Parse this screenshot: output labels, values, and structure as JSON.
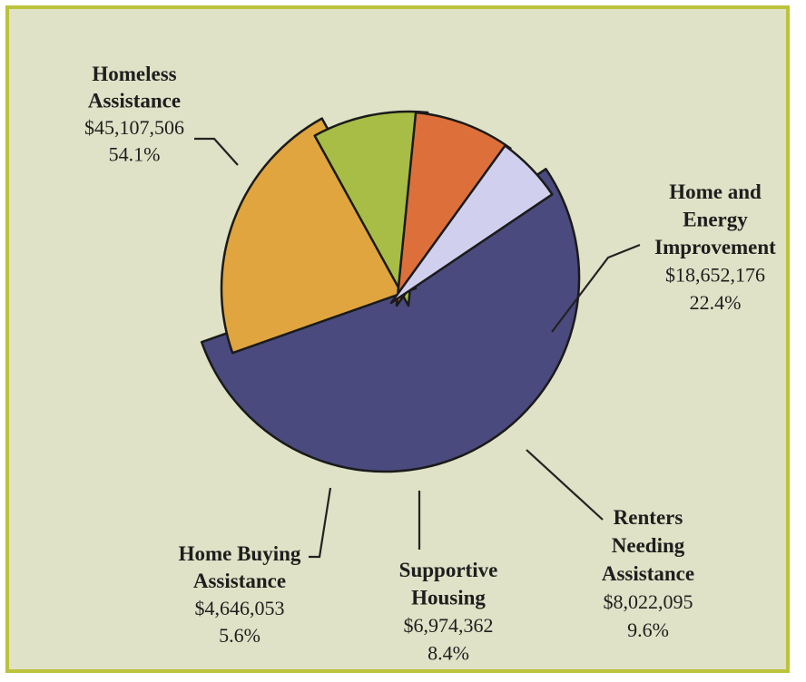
{
  "chart_data": {
    "type": "pie",
    "slices": [
      {
        "name_lines": [
          "Homeless",
          "Assistance"
        ],
        "amount": "$45,107,506",
        "percent": "54.1%",
        "value": 54.1,
        "color": "#4a4a7e"
      },
      {
        "name_lines": [
          "Home and",
          "Energy",
          "Improvement"
        ],
        "amount": "$18,652,176",
        "percent": "22.4%",
        "value": 22.4,
        "color": "#e0a53e"
      },
      {
        "name_lines": [
          "Renters",
          "Needing",
          "Assistance"
        ],
        "amount": "$8,022,095",
        "percent": "9.6%",
        "value": 9.6,
        "color": "#a7bd45"
      },
      {
        "name_lines": [
          "Supportive",
          "Housing"
        ],
        "amount": "$6,974,362",
        "percent": "8.4%",
        "value": 8.4,
        "color": "#dd6f3a"
      },
      {
        "name_lines": [
          "Home Buying",
          "Assistance"
        ],
        "amount": "$4,646,053",
        "percent": "5.6%",
        "value": 5.6,
        "color": "#d1cfee"
      }
    ]
  }
}
